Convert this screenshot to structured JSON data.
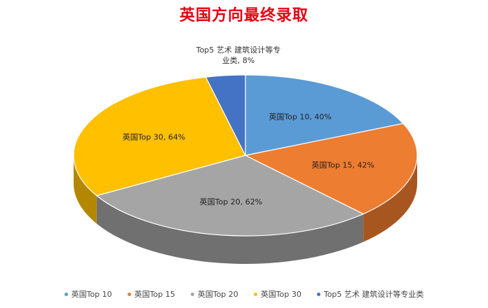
{
  "chart_data": {
    "type": "pie",
    "title": "英国方向最终录取",
    "slices": [
      {
        "name": "英国Top 10",
        "value": 40,
        "label": "英国Top 10, 40%",
        "color": "#5b9bd5",
        "side": "#3d6e9f"
      },
      {
        "name": "英国Top 15",
        "value": 42,
        "label": "英国Top 15, 42%",
        "color": "#ed7d31",
        "side": "#a85620"
      },
      {
        "name": "英国Top 20",
        "value": 62,
        "label": "英国Top 20, 62%",
        "color": "#a5a5a5",
        "side": "#707070"
      },
      {
        "name": "英国Top 30",
        "value": 64,
        "label": "英国Top 30, 64%",
        "color": "#ffc000",
        "side": "#b38700"
      },
      {
        "name": "Top5 艺术 建筑设计等专业类",
        "value": 8,
        "label_lines": [
          "Top5 艺术 建筑设计等专",
          "业类, 8%"
        ],
        "color": "#4472c4",
        "side": "#2e4f8a"
      }
    ],
    "legend_position": "bottom",
    "legend": [
      "英国Top 10",
      "英国Top 15",
      "英国Top 20",
      "英国Top 30",
      "Top5 艺术 建筑设计等专业类"
    ]
  }
}
